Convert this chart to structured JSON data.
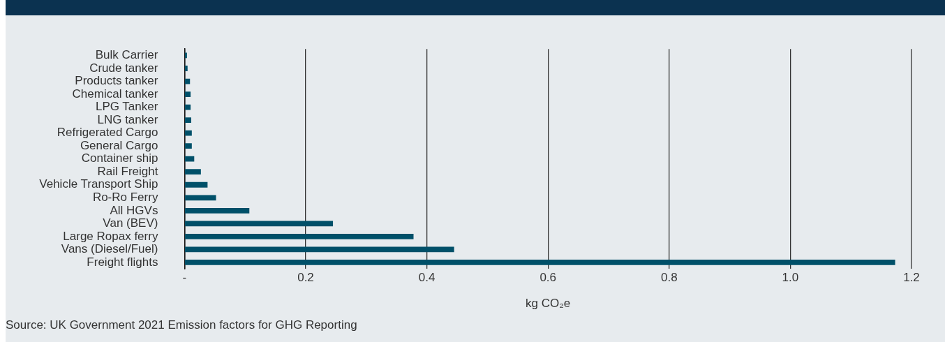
{
  "chart_data": {
    "type": "bar",
    "orientation": "horizontal",
    "xlabel": "kg CO₂e",
    "categories": [
      "Bulk Carrier",
      "Crude tanker",
      "Products tanker",
      "Chemical tanker",
      "LPG Tanker",
      "LNG tanker",
      "Refrigerated Cargo",
      "General Cargo",
      "Container ship",
      "Rail Freight",
      "Vehicle Transport Ship",
      "Ro-Ro Ferry",
      "All HGVs",
      "Van (BEV)",
      "Large Ropax ferry",
      "Vans (Diesel/Fuel)",
      "Freight flights"
    ],
    "values": [
      0.004,
      0.005,
      0.009,
      0.01,
      0.01,
      0.011,
      0.012,
      0.012,
      0.016,
      0.027,
      0.038,
      0.052,
      0.107,
      0.245,
      0.378,
      0.445,
      1.173
    ],
    "color": "#005069",
    "xlim": [
      0,
      1.2
    ],
    "xticks": [
      {
        "value": 0,
        "label": "-"
      },
      0.2,
      0.4,
      0.6,
      0.8,
      {
        "value": 1.0,
        "label": "1.0"
      },
      1.2
    ],
    "grid": "x",
    "annotations": [
      "Source: UK Government 2021 Emission factors for GHG Reporting"
    ]
  }
}
